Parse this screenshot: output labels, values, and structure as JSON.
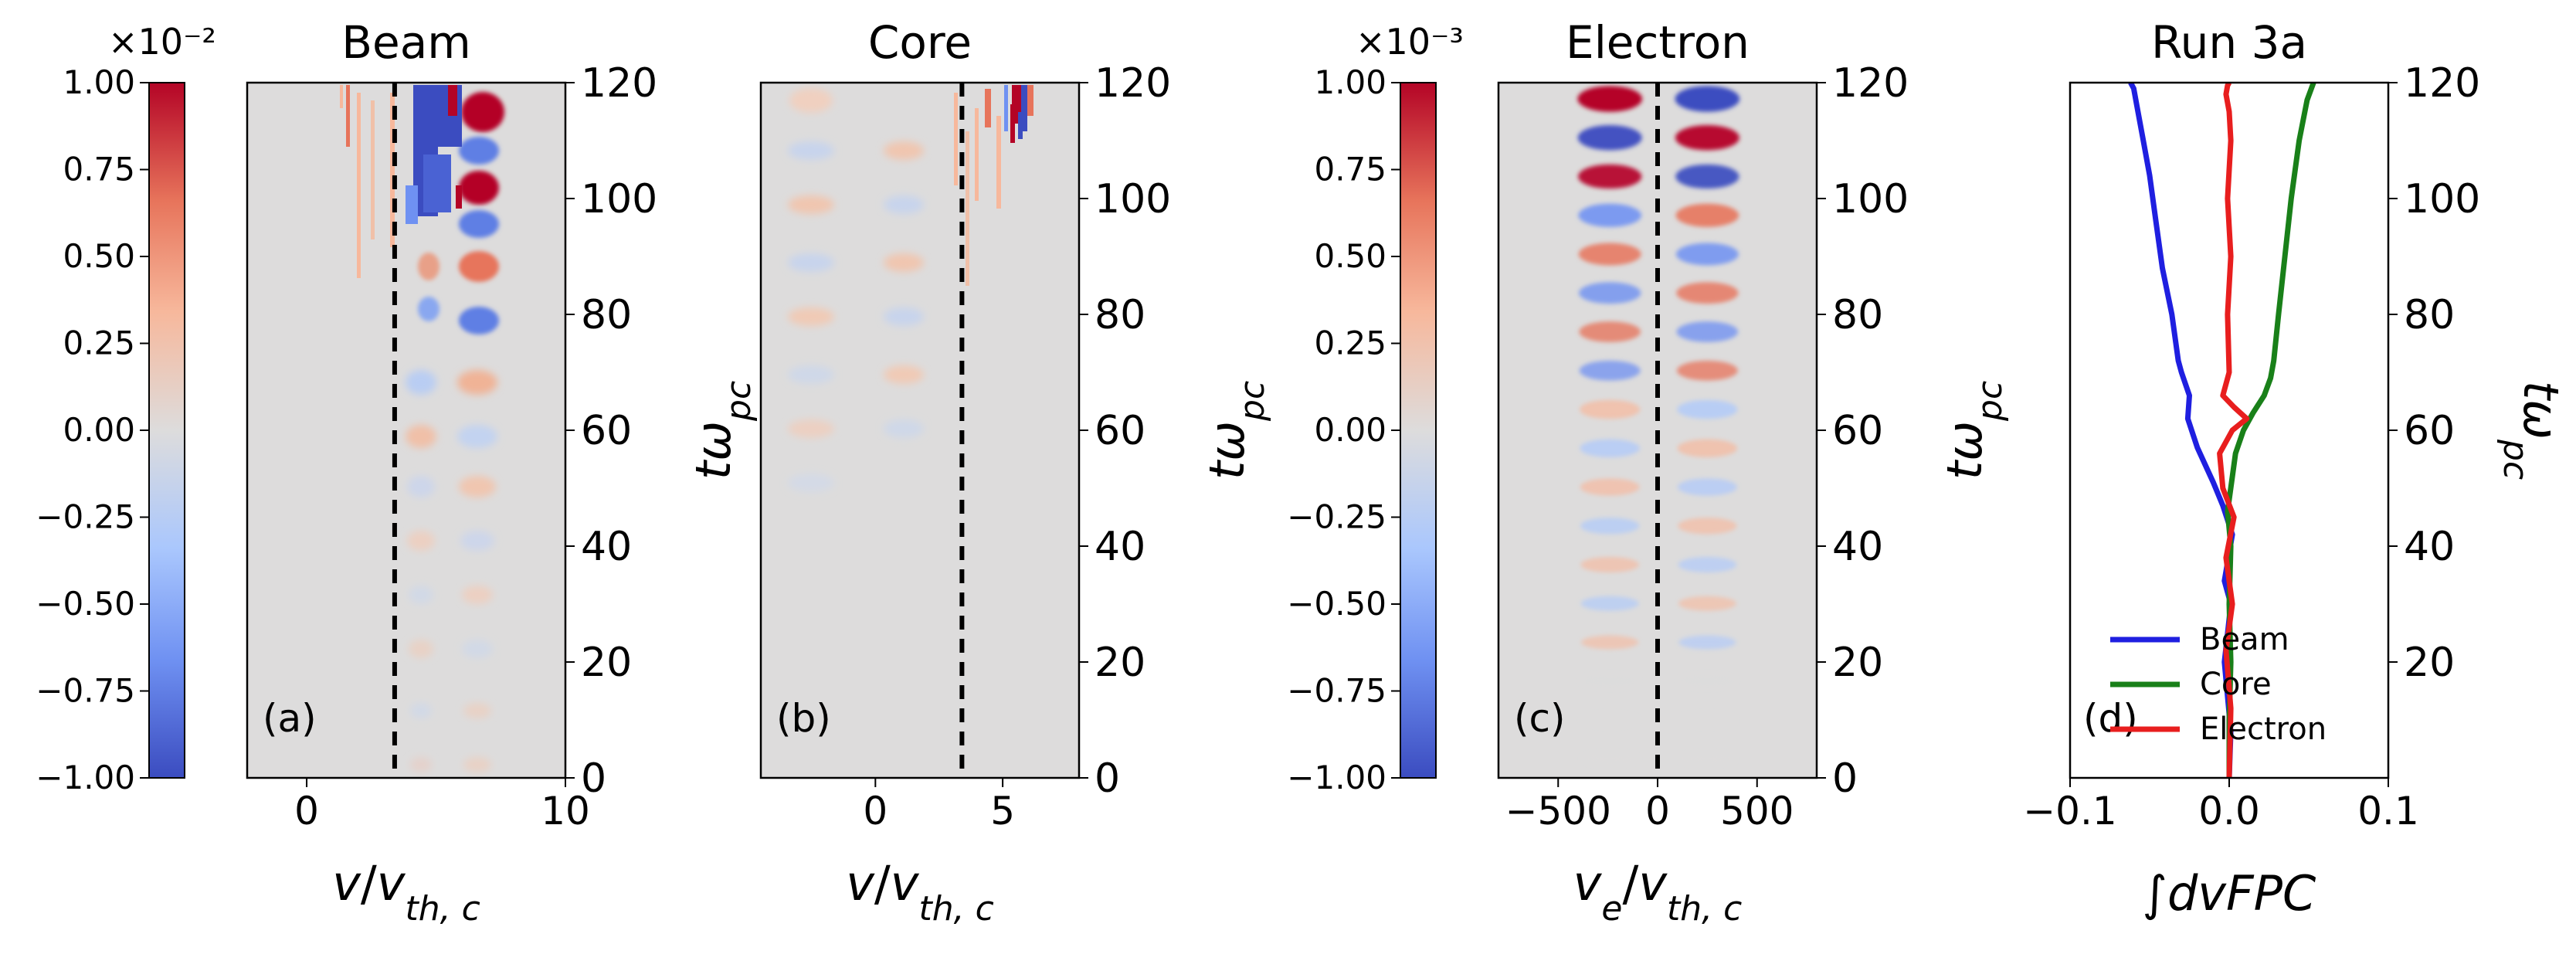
{
  "figure_label": "Run 3a",
  "colors": {
    "cmap": [
      "#3b4cc0",
      "#6f91f2",
      "#aac7fd",
      "#dddcdc",
      "#f7b89c",
      "#e7745b",
      "#b40426"
    ],
    "panel_background": "#dddcdc",
    "beam": "#1f1fe0",
    "core": "#198019",
    "electron": "#e81e1e",
    "dashed_line": "#000000"
  },
  "colorbars": [
    {
      "exponent_text": "×10⁻²",
      "tick_labels": [
        "1.00",
        "0.75",
        "0.50",
        "0.25",
        "0.00",
        "−0.25",
        "−0.50",
        "−0.75",
        "−1.00"
      ],
      "ticks": [
        1.0,
        0.75,
        0.5,
        0.25,
        0.0,
        -0.25,
        -0.5,
        -0.75,
        -1.0
      ]
    },
    {
      "exponent_text": "×10⁻³",
      "tick_labels": [
        "1.00",
        "0.75",
        "0.50",
        "0.25",
        "0.00",
        "−0.25",
        "−0.50",
        "−0.75",
        "−1.00"
      ],
      "ticks": [
        1.0,
        0.75,
        0.5,
        0.25,
        0.0,
        -0.25,
        -0.5,
        -0.75,
        -1.0
      ]
    }
  ],
  "chart_data": [
    {
      "type": "heatmap",
      "title": "Beam",
      "panel_label": "(a)",
      "xlabel": "v/v_th,c",
      "ylabel": "tω_pc",
      "xlim": [
        -2.3,
        10
      ],
      "ylim": [
        0,
        120
      ],
      "xticks": [
        0,
        10
      ],
      "xtick_labels": [
        "0",
        "10"
      ],
      "yticks": [
        0,
        20,
        40,
        60,
        80,
        100,
        120
      ],
      "ytick_labels": [
        "0",
        "20",
        "40",
        "60",
        "80",
        "100",
        "120"
      ],
      "dashed_line_x": 3.4,
      "colorbar_range": [
        -1.0,
        1.0
      ]
    },
    {
      "type": "heatmap",
      "title": "Core",
      "panel_label": "(b)",
      "xlabel": "v/v_th,c",
      "ylabel": "tω_pc",
      "xlim": [
        -4.5,
        8
      ],
      "ylim": [
        0,
        120
      ],
      "xticks": [
        0,
        5
      ],
      "xtick_labels": [
        "0",
        "5"
      ],
      "yticks": [
        0,
        20,
        40,
        60,
        80,
        100,
        120
      ],
      "ytick_labels": [
        "0",
        "20",
        "40",
        "60",
        "80",
        "100",
        "120"
      ],
      "dashed_line_x": 3.4
    },
    {
      "type": "heatmap",
      "title": "Electron",
      "panel_label": "(c)",
      "xlabel": "v_e/v_th,c",
      "ylabel": "tω_pc",
      "xlim": [
        -800,
        800
      ],
      "ylim": [
        0,
        120
      ],
      "xticks": [
        -500,
        0,
        500
      ],
      "xtick_labels": [
        "−500",
        "0",
        "500"
      ],
      "yticks": [
        0,
        20,
        40,
        60,
        80,
        100,
        120
      ],
      "ytick_labels": [
        "0",
        "20",
        "40",
        "60",
        "80",
        "100",
        "120"
      ],
      "dashed_line_x": 0,
      "colorbar_range": [
        -1.0,
        1.0
      ]
    },
    {
      "type": "line",
      "title": "Run 3a",
      "panel_label": "(d)",
      "xlabel": "∫dvFPC",
      "ylabel": "tω_pc",
      "xlim": [
        -0.1,
        0.1
      ],
      "ylim": [
        0,
        120
      ],
      "xticks": [
        -0.1,
        0.0,
        0.1
      ],
      "xtick_labels": [
        "−0.1",
        "0.0",
        "0.1"
      ],
      "yticks": [
        20,
        40,
        60,
        80,
        100,
        120
      ],
      "ytick_labels": [
        "20",
        "40",
        "60",
        "80",
        "100",
        "120"
      ],
      "legend_position": "bottom-left",
      "series": [
        {
          "name": "Beam",
          "x": [
            0,
            0.001,
            -0.003,
            0.001,
            -0.003,
            0.002,
            -0.004,
            -0.01,
            -0.02,
            -0.026,
            -0.025,
            -0.03,
            -0.032,
            -0.036,
            -0.042,
            -0.046,
            -0.05,
            -0.054,
            -0.058,
            -0.06,
            -0.062
          ],
          "y": [
            0,
            8,
            20,
            30,
            34,
            42,
            47,
            51,
            57,
            62,
            66,
            70,
            72,
            80,
            88,
            96,
            104,
            110,
            116,
            119,
            120
          ]
        },
        {
          "name": "Core",
          "x": [
            0,
            0.0,
            0.001,
            0.0,
            0.001,
            -0.001,
            0.002,
            0.004,
            0.009,
            0.015,
            0.022,
            0.026,
            0.028,
            0.031,
            0.035,
            0.039,
            0.044,
            0.049,
            0.053
          ],
          "y": [
            0,
            10,
            20,
            30,
            40,
            46,
            52,
            56,
            60,
            63,
            66,
            69,
            72,
            80,
            90,
            100,
            110,
            117,
            120
          ]
        },
        {
          "name": "Electron",
          "x": [
            0,
            0.001,
            -0.002,
            0.002,
            -0.002,
            0.003,
            -0.004,
            -0.006,
            0.002,
            0.011,
            0.003,
            -0.004,
            0.0,
            -0.001,
            0.001,
            -0.001,
            0.001,
            0.0,
            -0.002,
            -0.001,
            0.0
          ],
          "y": [
            0,
            12,
            22,
            30,
            38,
            45,
            50,
            56,
            60,
            62,
            64,
            66,
            70,
            80,
            90,
            100,
            110,
            115,
            118,
            119.5,
            120
          ]
        }
      ]
    }
  ]
}
